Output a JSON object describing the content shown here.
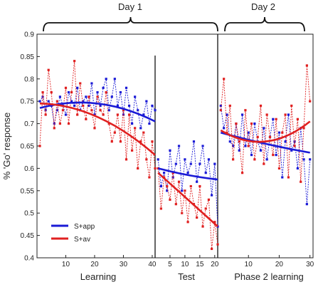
{
  "chart_data": {
    "type": "line",
    "ylabel": "% 'Go' response",
    "ylim": [
      0.4,
      0.9
    ],
    "yticks": [
      "0.4",
      "0.45",
      "0.5",
      "0.55",
      "0.6",
      "0.65",
      "0.7",
      "0.75",
      "0.8",
      "0.85",
      "0.9"
    ],
    "day_labels": [
      "Day 1",
      "Day 2"
    ],
    "legend": [
      "S+app",
      "S+av"
    ],
    "colors": {
      "S+app": "#1a1ad6",
      "S+av": "#e02020"
    },
    "panels": [
      {
        "label": "Learning",
        "xlim": [
          0,
          41
        ],
        "xticks": [
          "10",
          "20",
          "30",
          "40"
        ],
        "series": [
          {
            "name": "S+app",
            "values": [
              0.75,
              0.76,
              0.73,
              0.75,
              0.74,
              0.7,
              0.73,
              0.76,
              0.74,
              0.72,
              0.77,
              0.75,
              0.74,
              0.78,
              0.73,
              0.75,
              0.76,
              0.74,
              0.79,
              0.72,
              0.77,
              0.74,
              0.78,
              0.8,
              0.73,
              0.76,
              0.8,
              0.74,
              0.77,
              0.72,
              0.78,
              0.74,
              0.7,
              0.76,
              0.73,
              0.69,
              0.72,
              0.75,
              0.7,
              0.74,
              0.73
            ]
          },
          {
            "name": "S+av",
            "values": [
              0.65,
              0.77,
              0.72,
              0.82,
              0.77,
              0.69,
              0.75,
              0.7,
              0.73,
              0.78,
              0.7,
              0.77,
              0.84,
              0.72,
              0.79,
              0.74,
              0.71,
              0.76,
              0.73,
              0.69,
              0.76,
              0.73,
              0.72,
              0.77,
              0.7,
              0.66,
              0.68,
              0.72,
              0.66,
              0.73,
              0.62,
              0.72,
              0.64,
              0.69,
              0.6,
              0.66,
              0.68,
              0.62,
              0.58,
              0.66,
              0.6
            ]
          }
        ],
        "trend": [
          {
            "name": "S+app",
            "start": 0.735,
            "mid": 0.745,
            "end": 0.705
          },
          {
            "name": "S+av",
            "start": 0.745,
            "mid": 0.715,
            "end": 0.63
          }
        ]
      },
      {
        "label": "Test",
        "xlim": [
          0,
          21
        ],
        "xticks": [
          "5",
          "10",
          "15",
          "20"
        ],
        "series": [
          {
            "name": "S+app",
            "values": [
              0.62,
              0.56,
              0.59,
              0.55,
              0.64,
              0.58,
              0.61,
              0.65,
              0.55,
              0.62,
              0.59,
              0.61,
              0.66,
              0.57,
              0.61,
              0.65,
              0.59,
              0.62,
              0.54,
              0.61,
              0.47
            ]
          },
          {
            "name": "S+av",
            "values": [
              0.6,
              0.51,
              0.58,
              0.56,
              0.53,
              0.59,
              0.52,
              0.57,
              0.5,
              0.55,
              0.48,
              0.56,
              0.52,
              0.49,
              0.56,
              0.47,
              0.51,
              0.53,
              0.42,
              0.48,
              0.43
            ]
          }
        ],
        "trend": [
          {
            "name": "S+app",
            "start": 0.6,
            "mid": 0.585,
            "end": 0.575
          },
          {
            "name": "S+av",
            "start": 0.59,
            "mid": 0.53,
            "end": 0.47
          }
        ]
      },
      {
        "label": "Phase 2 learning",
        "xlim": [
          0,
          31
        ],
        "xticks": [
          "10",
          "20",
          "30"
        ],
        "series": [
          {
            "name": "S+app",
            "values": [
              0.74,
              0.69,
              0.72,
              0.66,
              0.65,
              0.7,
              0.64,
              0.72,
              0.65,
              0.68,
              0.63,
              0.7,
              0.66,
              0.64,
              0.69,
              0.62,
              0.67,
              0.71,
              0.63,
              0.68,
              0.58,
              0.66,
              0.72,
              0.64,
              0.66,
              0.6,
              0.69,
              0.62,
              0.52,
              0.62
            ]
          },
          {
            "name": "S+av",
            "values": [
              0.73,
              0.8,
              0.68,
              0.74,
              0.62,
              0.7,
              0.66,
              0.59,
              0.73,
              0.65,
              0.7,
              0.62,
              0.67,
              0.74,
              0.61,
              0.72,
              0.67,
              0.63,
              0.71,
              0.6,
              0.68,
              0.72,
              0.58,
              0.74,
              0.65,
              0.71,
              0.57,
              0.69,
              0.83,
              0.75
            ]
          }
        ],
        "trend": [
          {
            "name": "S+app",
            "start": 0.68,
            "mid": 0.655,
            "end": 0.635
          },
          {
            "name": "S+av",
            "start": 0.685,
            "mid": 0.66,
            "end": 0.705
          }
        ]
      }
    ]
  }
}
